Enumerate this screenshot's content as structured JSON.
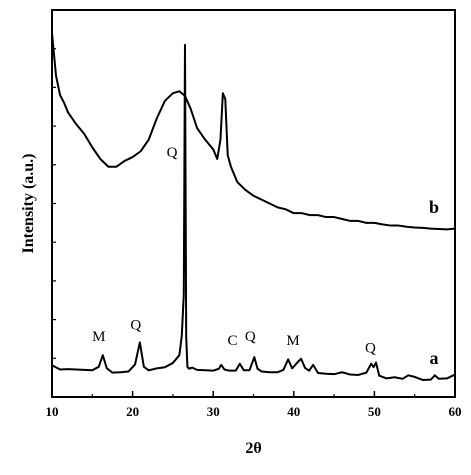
{
  "chart_data": {
    "type": "line",
    "title": "",
    "xlabel": "2θ",
    "ylabel": "Intensity (a.u.)",
    "xlim": [
      10,
      60
    ],
    "ylim": [
      0,
      100
    ],
    "xticks": [
      10,
      20,
      30,
      40,
      50,
      60
    ],
    "y_tick_labels_shown": false,
    "grid": false,
    "legend": "none",
    "series": [
      {
        "name": "a",
        "x": [
          10,
          11,
          12,
          13,
          14,
          15,
          15.8,
          16.3,
          16.8,
          17.5,
          18.5,
          19.5,
          20.3,
          20.9,
          21.4,
          22,
          23,
          24,
          25,
          25.8,
          26.1,
          26.35,
          26.5,
          26.65,
          26.8,
          27,
          27.4,
          28,
          29,
          30,
          30.7,
          31,
          31.4,
          32,
          32.8,
          33.3,
          33.8,
          34.5,
          35.1,
          35.5,
          36,
          37,
          38,
          38.7,
          39.3,
          39.8,
          40.3,
          40.9,
          41.4,
          41.9,
          42.4,
          43,
          44,
          45,
          46,
          47,
          48,
          49,
          49.6,
          49.9,
          50.2,
          50.6,
          51.5,
          52.5,
          53.5,
          54.2,
          55,
          56,
          57,
          57.5,
          58,
          59,
          60
        ],
        "y": [
          8.2,
          7.1,
          7.2,
          7.1,
          7,
          6.9,
          7.8,
          10.8,
          7.4,
          6.3,
          6.4,
          6.6,
          8.4,
          14.1,
          7.8,
          6.9,
          7.4,
          7.7,
          8.8,
          10.8,
          15.8,
          26.4,
          91,
          15.5,
          7.8,
          7.3,
          7.6,
          7,
          6.9,
          6.8,
          7.3,
          8.3,
          7.1,
          6.8,
          6.8,
          8.6,
          6.9,
          6.9,
          10.3,
          7.3,
          6.6,
          6.4,
          6.4,
          7,
          9.7,
          7.4,
          8.6,
          9.9,
          7.5,
          6.8,
          8.3,
          6.2,
          6,
          5.9,
          6.4,
          5.8,
          5.7,
          6.3,
          8.6,
          7.7,
          8.9,
          5.5,
          4.8,
          5.1,
          4.7,
          5.6,
          5.2,
          4.4,
          4.5,
          5.6,
          4.7,
          4.8,
          5.8
        ]
      },
      {
        "name": "b",
        "x": [
          10,
          10.5,
          11,
          11.5,
          12,
          13,
          14,
          15,
          16,
          17,
          18,
          19,
          20,
          21,
          22,
          23,
          24,
          25,
          25.8,
          26.5,
          27.2,
          28,
          29,
          30,
          30.5,
          30.9,
          31.2,
          31.5,
          31.8,
          32.2,
          33,
          34,
          35,
          36,
          37,
          38,
          39,
          40,
          41,
          42,
          43,
          44,
          45,
          46,
          47,
          48,
          49,
          50,
          51,
          52,
          53,
          54,
          55,
          56,
          57,
          58,
          59,
          60
        ],
        "y": [
          94,
          83,
          78,
          76,
          73.5,
          70.5,
          68,
          64.5,
          61.5,
          59.5,
          59.5,
          61,
          62,
          63.5,
          66.5,
          72,
          76.5,
          78.5,
          79,
          77.8,
          74.5,
          69.5,
          66.5,
          64,
          61.5,
          66.5,
          78.5,
          77,
          62.5,
          59.5,
          55.5,
          53.5,
          52,
          51,
          50,
          49,
          48.5,
          47.5,
          47.5,
          47,
          47,
          46.5,
          46.5,
          46,
          45.5,
          45.5,
          45,
          45,
          44.6,
          44.3,
          44.3,
          44,
          43.8,
          43.7,
          43.5,
          43.4,
          43.3,
          43.5
        ]
      }
    ],
    "annotations": [
      {
        "text": "M",
        "x": 15.8,
        "y": 14.5
      },
      {
        "text": "Q",
        "x": 20.4,
        "y": 17.5
      },
      {
        "text": "Q",
        "x": 24.9,
        "y": 62
      },
      {
        "text": "C",
        "x": 32.4,
        "y": 13.5
      },
      {
        "text": "Q",
        "x": 34.6,
        "y": 14.5
      },
      {
        "text": "M",
        "x": 39.9,
        "y": 13.5
      },
      {
        "text": "Q",
        "x": 49.5,
        "y": 11.5
      }
    ],
    "curve_labels": [
      {
        "text": "a",
        "x": 57.4,
        "y": 8.5
      },
      {
        "text": "b",
        "x": 57.4,
        "y": 47.5
      }
    ]
  }
}
